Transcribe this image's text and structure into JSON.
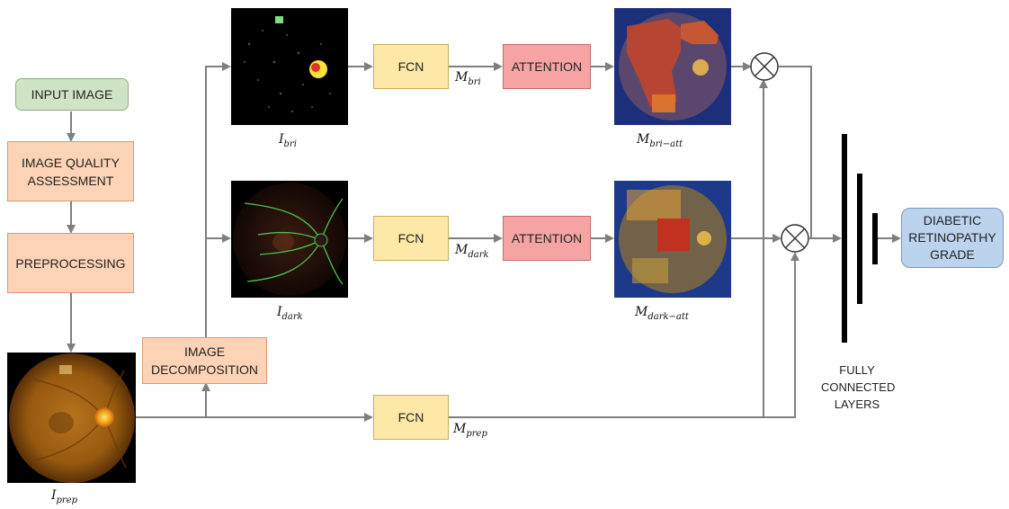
{
  "boxes": {
    "input_image": "INPUT IMAGE",
    "quality_line1": "IMAGE QUALITY",
    "quality_line2": "ASSESSMENT",
    "preprocessing": "PREPROCESSING",
    "decomp_line1": "IMAGE",
    "decomp_line2": "DECOMPOSITION",
    "fcn": "FCN",
    "attention": "ATTENTION",
    "grade_line1": "DIABETIC",
    "grade_line2": "RETINOPATHY",
    "grade_line3": "GRADE"
  },
  "labels": {
    "i_bri": {
      "base": "I",
      "sub": "bri"
    },
    "i_dark": {
      "base": "I",
      "sub": "dark"
    },
    "i_prep": {
      "base": "I",
      "sub": "prep"
    },
    "m_bri": {
      "base": "M",
      "sub": "bri"
    },
    "m_dark": {
      "base": "M",
      "sub": "dark"
    },
    "m_prep": {
      "base": "M",
      "sub": "prep"
    },
    "m_bri_att": {
      "base": "M",
      "sub": "bri−att"
    },
    "m_dark_att": {
      "base": "M",
      "sub": "dark−att"
    }
  },
  "fully_connected": {
    "line1": "FULLY",
    "line2": "CONNECTED",
    "line3": "LAYERS"
  },
  "colors": {
    "arrow": "#7f7f7f",
    "green": "#cfe4c4",
    "peach": "#fcd3b6",
    "yellow": "#fde8a8",
    "red": "#f5a3a3",
    "blue": "#bcd3ee"
  }
}
